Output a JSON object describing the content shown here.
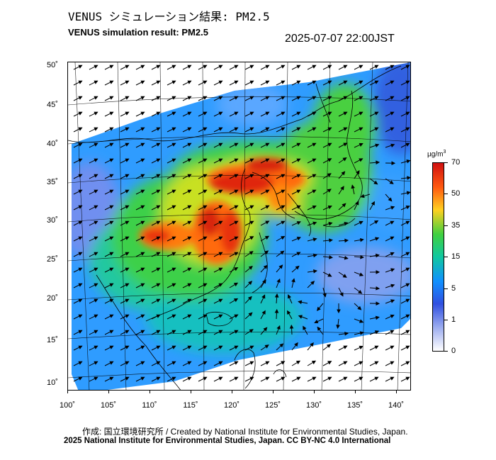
{
  "header": {
    "title_jp": "VENUS シミュレーション結果: PM2.5",
    "title_en": "VENUS simulation result: PM2.5",
    "timestamp": "2025-07-07 22:00JST"
  },
  "map": {
    "lat_labels": [
      "50˚",
      "45˚",
      "40˚",
      "35˚",
      "30˚",
      "25˚",
      "20˚",
      "15˚",
      "10˚"
    ],
    "lon_labels": [
      "100˚",
      "105˚",
      "110˚",
      "115˚",
      "120˚",
      "125˚",
      "130˚",
      "135˚",
      "140˚"
    ],
    "coastline_color": "#000000",
    "wind_arrow_color": "#000000"
  },
  "colorbar": {
    "unit": "µg/m",
    "unit_sup": "3",
    "labels": [
      "70",
      "50",
      "35",
      "15",
      "5",
      "1",
      "0"
    ],
    "colors": [
      "#d01010",
      "#ff5a10",
      "#ffd020",
      "#40d040",
      "#10c8a0",
      "#1090ff",
      "#3050e0",
      "#a0b0f0",
      "#ffffff"
    ]
  },
  "footer": {
    "credit": "作成: 国立環境研究所 / Created by National Institute for Environmental Studies, Japan.",
    "copyright": "2025 National Institute for Environmental Studies, Japan. CC BY-NC 4.0 International"
  }
}
